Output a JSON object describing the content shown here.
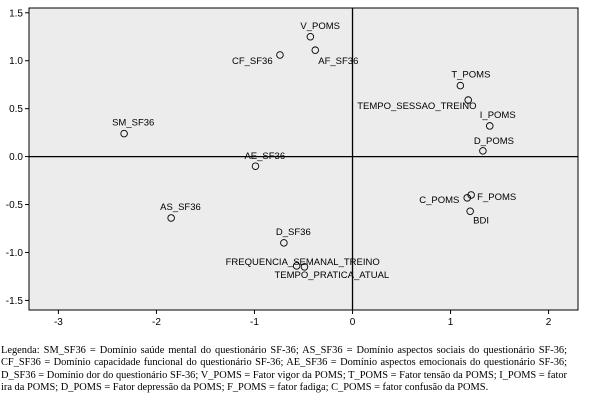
{
  "chart_data": {
    "type": "scatter",
    "title": "",
    "xlabel": "",
    "ylabel": "",
    "xlim": [
      -3.3,
      2.3
    ],
    "ylim": [
      -1.6,
      1.55
    ],
    "x_ticks": [
      -3,
      -2,
      -1,
      0,
      1,
      2
    ],
    "y_ticks": [
      1.5,
      1.0,
      0.5,
      0.0,
      -0.5,
      -1.0,
      -1.5
    ],
    "x_tick_labels": [
      "-3",
      "-2",
      "-1",
      "0",
      "1",
      "2"
    ],
    "y_tick_labels": [
      "1.5",
      "1.0",
      "0.5",
      "0.0",
      "-0.5",
      "-1.0",
      "-1.5"
    ],
    "reference_lines": {
      "x": 0,
      "y": 0
    },
    "grid": false,
    "marker": "open-circle",
    "background": "#ececec",
    "points": [
      {
        "label": "V_POMS",
        "x": -0.43,
        "y": 1.25
      },
      {
        "label": "AF_SF36",
        "x": -0.38,
        "y": 1.11
      },
      {
        "label": "CF_SF36",
        "x": -0.74,
        "y": 1.06
      },
      {
        "label": "T_POMS",
        "x": 1.1,
        "y": 0.74
      },
      {
        "label": "TEMPO_SESSAO_TREINO",
        "x": 1.18,
        "y": 0.59
      },
      {
        "label": "I_POMS",
        "x": 1.4,
        "y": 0.32
      },
      {
        "label": "D_POMS",
        "x": 1.33,
        "y": 0.06
      },
      {
        "label": "SM_SF36",
        "x": -2.33,
        "y": 0.24
      },
      {
        "label": "AE_SF36",
        "x": -0.99,
        "y": -0.1
      },
      {
        "label": "AS_SF36",
        "x": -1.85,
        "y": -0.64
      },
      {
        "label": "F_POMS",
        "x": 1.21,
        "y": -0.4
      },
      {
        "label": "C_POMS",
        "x": 1.17,
        "y": -0.43
      },
      {
        "label": "BDI",
        "x": 1.2,
        "y": -0.57
      },
      {
        "label": "D_SF36",
        "x": -0.7,
        "y": -0.9
      },
      {
        "label": "FREQUENCIA_SEMANAL_TREINO",
        "x": -0.57,
        "y": -1.14
      },
      {
        "label": "TEMPO_PRATICA_ATUAL",
        "x": -0.49,
        "y": -1.15
      }
    ]
  },
  "caption": "Legenda: SM_SF36 = Domínio saúde mental do questionário SF-36; AS_SF36 = Domínio aspectos sociais do questionário SF-36; CF_SF36 = Domínio capacidade funcional do questionário SF-36; AE_SF36 = Domínio aspectos emocionais do questionário SF-36; D_SF36 = Domínio dor do questionário SF-36; V_POMS = Fator vigor da POMS; T_POMS = Fator tensão da POMS; I_POMS = fator ira da POMS; D_POMS = Fator depressão da POMS; F_POMS = fator fadiga; C_POMS = fator confusão da POMS."
}
